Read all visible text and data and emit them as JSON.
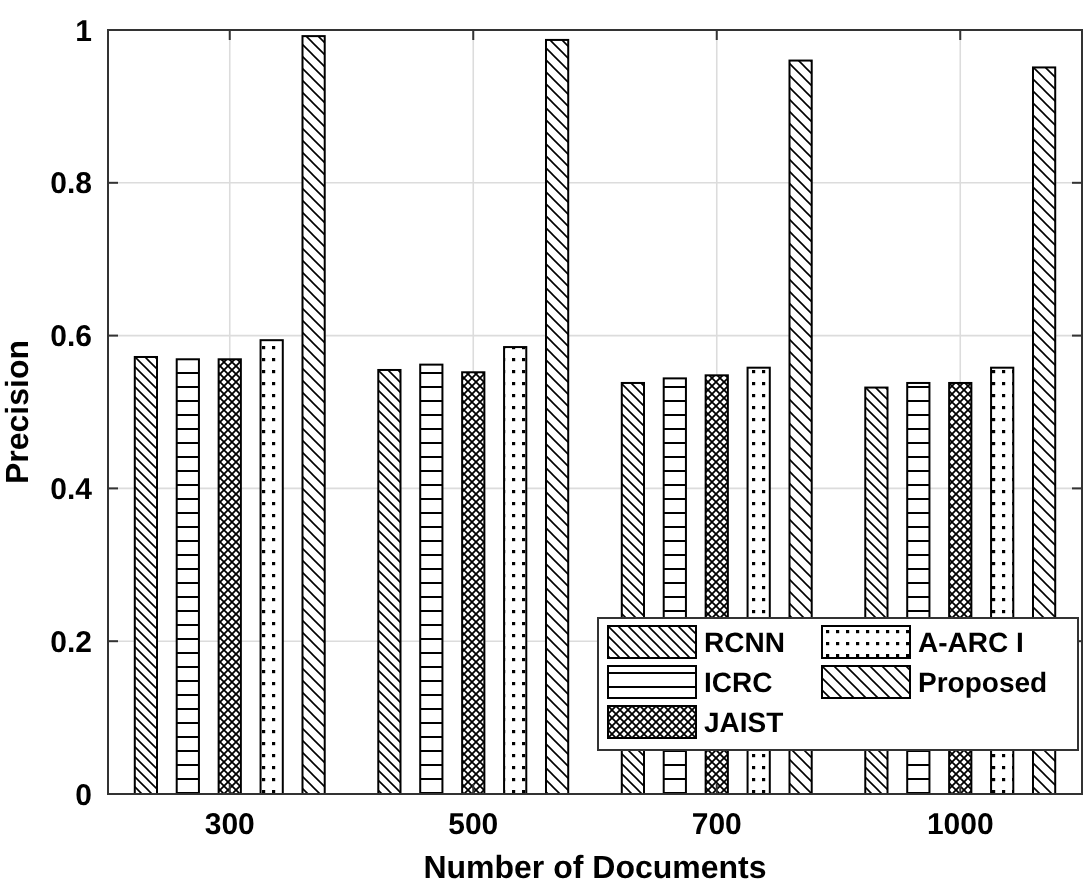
{
  "chart_data": {
    "type": "bar",
    "xlabel": "Number of Documents",
    "ylabel": "Precision",
    "categories": [
      "300",
      "500",
      "700",
      "1000"
    ],
    "series": [
      {
        "name": "RCNN",
        "color": "#ffffff",
        "values": [
          0.572,
          0.555,
          0.538,
          0.532
        ]
      },
      {
        "name": "ICRC",
        "color": "#ffffff",
        "values": [
          0.569,
          0.562,
          0.544,
          0.538
        ]
      },
      {
        "name": "JAIST",
        "color": "#ffffff",
        "values": [
          0.569,
          0.552,
          0.548,
          0.538
        ]
      },
      {
        "name": "A-ARC I",
        "color": "#ffffff",
        "values": [
          0.594,
          0.585,
          0.558,
          0.558
        ]
      },
      {
        "name": "Proposed",
        "color": "#ffffff",
        "values": [
          0.992,
          0.987,
          0.96,
          0.951
        ]
      }
    ],
    "ylim": [
      0,
      1
    ],
    "yticks": [
      0,
      0.2,
      0.4,
      0.6,
      0.8,
      1
    ],
    "grid": true,
    "legend": "bottom right"
  }
}
